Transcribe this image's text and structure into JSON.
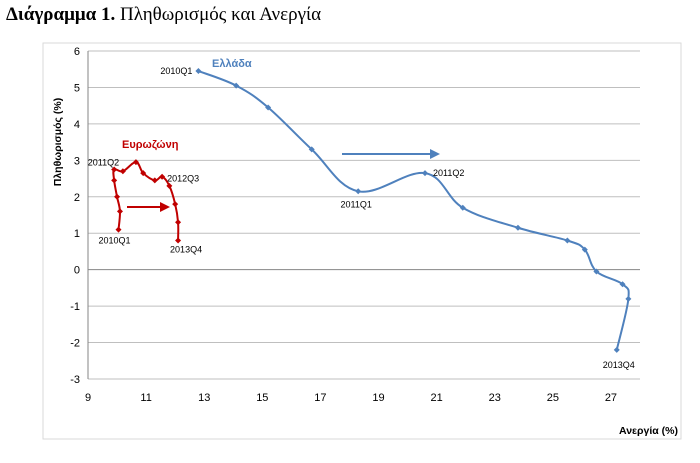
{
  "header": {
    "caption_bold": "Διάγραμμα 1.",
    "caption_rest": " Πληθωρισμός και Ανεργία"
  },
  "chart_data": {
    "type": "line",
    "title": "",
    "xlabel": "Ανεργία (%)",
    "ylabel": "Πληθωρισμός (%)",
    "xlim": [
      9,
      28
    ],
    "ylim": [
      -3,
      6
    ],
    "xticks": [
      "9",
      "11",
      "13",
      "15",
      "17",
      "19",
      "21",
      "23",
      "25",
      "27"
    ],
    "yticks": [
      "-3",
      "-2",
      "-1",
      "0",
      "1",
      "2",
      "3",
      "4",
      "5",
      "6"
    ],
    "grid": "horizontal",
    "colors": {
      "greece": "#4f81bd",
      "eurozone": "#c00000",
      "grid": "#bfbfbf",
      "axis": "#868686"
    },
    "series": [
      {
        "name": "Ελλάδα",
        "points": [
          {
            "x": 12.8,
            "y": 5.45
          },
          {
            "x": 14.1,
            "y": 5.05
          },
          {
            "x": 15.2,
            "y": 4.45
          },
          {
            "x": 16.7,
            "y": 3.3
          },
          {
            "x": 18.3,
            "y": 2.15
          },
          {
            "x": 20.6,
            "y": 2.65
          },
          {
            "x": 21.9,
            "y": 1.7
          },
          {
            "x": 23.8,
            "y": 1.15
          },
          {
            "x": 25.5,
            "y": 0.8
          },
          {
            "x": 26.1,
            "y": 0.55
          },
          {
            "x": 26.5,
            "y": -0.05
          },
          {
            "x": 27.4,
            "y": -0.4
          },
          {
            "x": 27.6,
            "y": -0.8
          },
          {
            "x": 27.2,
            "y": -2.2
          }
        ]
      },
      {
        "name": "Ευρωζώνη",
        "points": [
          {
            "x": 10.05,
            "y": 1.1
          },
          {
            "x": 10.1,
            "y": 1.6
          },
          {
            "x": 10.0,
            "y": 2.0
          },
          {
            "x": 9.9,
            "y": 2.45
          },
          {
            "x": 9.9,
            "y": 2.75
          },
          {
            "x": 10.2,
            "y": 2.7
          },
          {
            "x": 10.65,
            "y": 2.95
          },
          {
            "x": 10.9,
            "y": 2.65
          },
          {
            "x": 11.3,
            "y": 2.45
          },
          {
            "x": 11.55,
            "y": 2.55
          },
          {
            "x": 11.8,
            "y": 2.3
          },
          {
            "x": 12.0,
            "y": 1.8
          },
          {
            "x": 12.1,
            "y": 1.3
          },
          {
            "x": 12.1,
            "y": 0.8
          }
        ]
      }
    ],
    "point_labels": [
      {
        "text": "2010Q1",
        "series": 0,
        "index": 0
      },
      {
        "text": "2011Q1",
        "series": 0,
        "index": 4
      },
      {
        "text": "2011Q2",
        "series": 0,
        "index": 5
      },
      {
        "text": "2013Q4",
        "series": 0,
        "index": 13
      },
      {
        "text": "2011Q2",
        "series": 1,
        "index": 4
      },
      {
        "text": "2012Q3",
        "series": 1,
        "index": 9
      },
      {
        "text": "2010Q1",
        "series": 1,
        "index": 0
      },
      {
        "text": "2013Q4",
        "series": 1,
        "index": 13
      }
    ]
  }
}
